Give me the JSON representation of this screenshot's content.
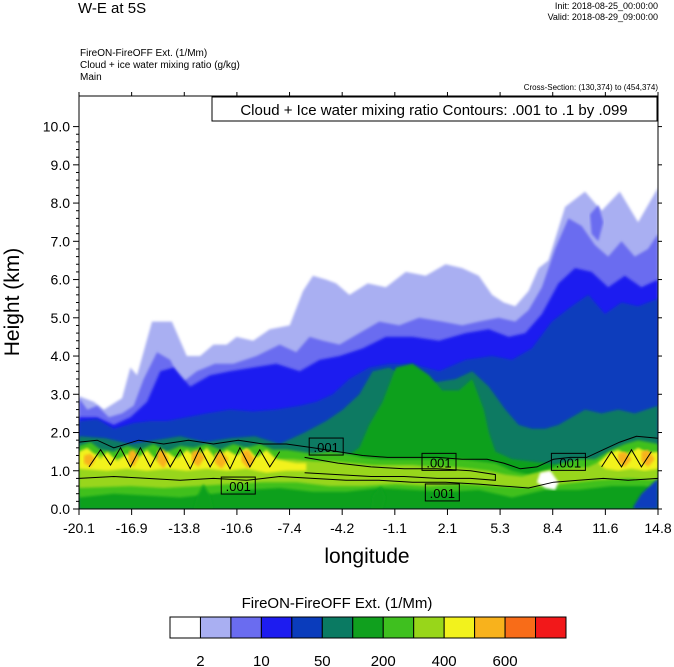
{
  "header": {
    "title": "W-E at 5S",
    "init": "Init: 2018-08-25_00:00:00",
    "valid": "Valid: 2018-08-29_09:00:00",
    "subtitle_lines": [
      "FireON-FireOFF Ext.   (1/Mm)",
      "Cloud + ice water mixing ratio   (g/kg)",
      "Main"
    ],
    "cross_section": "Cross-Section: (130,374) to (454,374)"
  },
  "chart_data": {
    "type": "heatmap",
    "contour_title": "Cloud + Ice water mixing ratio Contours: .001 to .1 by .099",
    "xlabel": "longitude",
    "ylabel": "Height (km)",
    "xlim": [
      -20.1,
      14.8
    ],
    "ylim": [
      0.0,
      10.8
    ],
    "x_ticks": [
      "-20.1",
      "-16.9",
      "-13.8",
      "-10.6",
      "-7.4",
      "-4.2",
      "-1.1",
      "2.1",
      "5.3",
      "8.4",
      "11.6",
      "14.8"
    ],
    "y_ticks": [
      "0.0",
      "1.0",
      "2.0",
      "3.0",
      "4.0",
      "5.0",
      "6.0",
      "7.0",
      "8.0",
      "9.0",
      "10.0"
    ],
    "contour_labels": [
      {
        "text": ".001",
        "x": -10.5,
        "y": 0.6
      },
      {
        "text": ".001",
        "x": -5.2,
        "y": 1.62
      },
      {
        "text": ".001",
        "x": 1.6,
        "y": 1.22
      },
      {
        "text": ".001",
        "x": 1.8,
        "y": 0.42
      },
      {
        "text": ".001",
        "x": 9.4,
        "y": 1.22
      }
    ],
    "colorbar": {
      "title": "FireON-FireOFF Ext.  (1/Mm)",
      "colors": [
        "#ffffff",
        "#a9aff2",
        "#6a6cf0",
        "#1d1cf0",
        "#0a3cbc",
        "#0a7a62",
        "#10a01e",
        "#3fc01f",
        "#98d61a",
        "#f2f21d",
        "#f8b21c",
        "#f86c18",
        "#f2181a"
      ],
      "tick_labels": [
        "2",
        "10",
        "50",
        "200",
        "400",
        "600"
      ]
    }
  }
}
